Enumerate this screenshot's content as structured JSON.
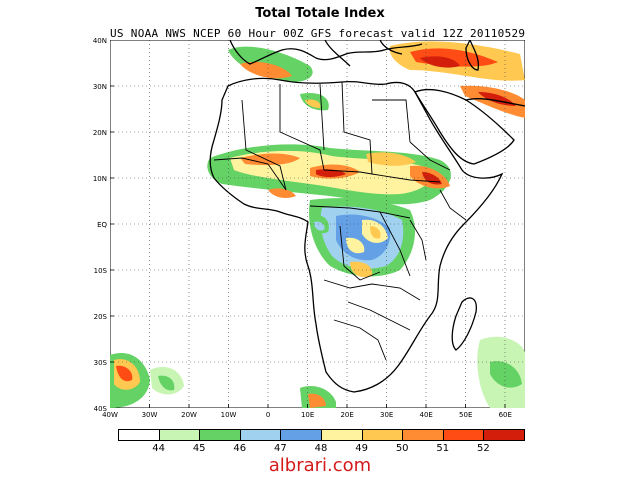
{
  "title": "Total Totale Index",
  "subtitle": "US NOAA NWS NCEP 60 Hour 00Z GFS forecast valid 12Z 20110529",
  "watermark": "albrari.com",
  "latitude_labels": [
    "40N",
    "30N",
    "20N",
    "10N",
    "EQ",
    "10S",
    "20S",
    "30S",
    "40S"
  ],
  "longitude_labels": [
    "40W",
    "30W",
    "20W",
    "10W",
    "0",
    "10E",
    "20E",
    "30E",
    "40E",
    "50E",
    "60E"
  ],
  "legend": {
    "levels": [
      "44",
      "45",
      "46",
      "47",
      "48",
      "49",
      "50",
      "51",
      "52"
    ],
    "colors": [
      "#ffffff",
      "#c8f5b4",
      "#64d264",
      "#a0d2f0",
      "#64a0e6",
      "#fff3a0",
      "#ffc850",
      "#ff8c32",
      "#ff4b14",
      "#d21e0a"
    ]
  },
  "map_extent": {
    "lon_min": -40,
    "lon_max": 65,
    "lat_min": -40,
    "lat_max": 40
  }
}
